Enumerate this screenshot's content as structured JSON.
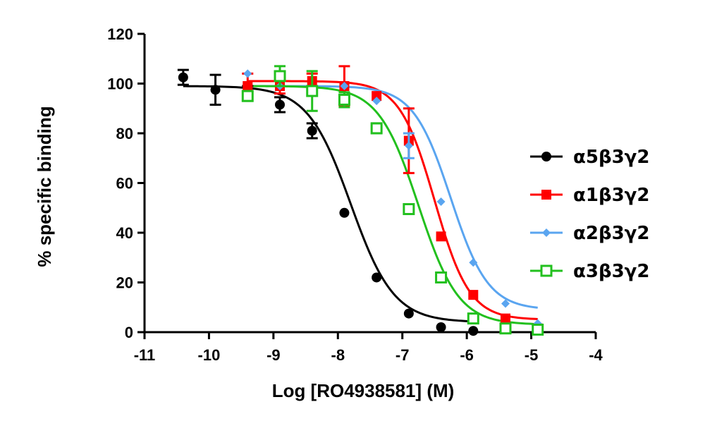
{
  "chart_data": {
    "type": "scatter",
    "title": "",
    "xlabel": "Log [RO4938581] (M)",
    "ylabel": "% specific binding",
    "xlim": [
      -11,
      -4
    ],
    "ylim": [
      0,
      120
    ],
    "xticks": [
      -11,
      -10,
      -9,
      -8,
      -7,
      -6,
      -5,
      -4
    ],
    "yticks": [
      0,
      20,
      40,
      60,
      80,
      100,
      120
    ],
    "xtick_labels": [
      "-11",
      "-10",
      "-9",
      "-8",
      "-7",
      "-6",
      "-5",
      "-4"
    ],
    "ytick_labels": [
      "0",
      "20",
      "40",
      "60",
      "80",
      "100",
      "120"
    ],
    "legend_position": "right",
    "series": [
      {
        "name": "α5β3γ2",
        "color": "#000000",
        "marker": "circle",
        "fit": {
          "top": 99,
          "bottom": 4,
          "logIC50": -7.8,
          "hill": 1.3,
          "xmin": -10.4,
          "xmax": -5.9
        },
        "points": [
          {
            "x": -10.4,
            "y": 102.5,
            "err": 3
          },
          {
            "x": -9.9,
            "y": 97.5,
            "err": 6
          },
          {
            "x": -9.4,
            "y": 97,
            "err": 2
          },
          {
            "x": -8.9,
            "y": 91.5,
            "err": 3
          },
          {
            "x": -8.4,
            "y": 81,
            "err": 3
          },
          {
            "x": -7.9,
            "y": 48,
            "err": 0
          },
          {
            "x": -7.4,
            "y": 22,
            "err": 0
          },
          {
            "x": -6.9,
            "y": 7.5,
            "err": 0
          },
          {
            "x": -6.4,
            "y": 2,
            "err": 0
          },
          {
            "x": -5.9,
            "y": 0.5,
            "err": 0
          }
        ]
      },
      {
        "name": "α1β3γ2",
        "color": "#ff0000",
        "marker": "square",
        "fit": {
          "top": 101,
          "bottom": 5,
          "logIC50": -6.5,
          "hill": 1.6,
          "xmin": -9.4,
          "xmax": -4.9
        },
        "points": [
          {
            "x": -9.4,
            "y": 99,
            "err": 5
          },
          {
            "x": -8.9,
            "y": 99,
            "err": 3
          },
          {
            "x": -8.4,
            "y": 101,
            "err": 3
          },
          {
            "x": -7.9,
            "y": 99,
            "err": 8
          },
          {
            "x": -7.4,
            "y": 95,
            "err": 0
          },
          {
            "x": -6.9,
            "y": 77,
            "err": 13
          },
          {
            "x": -6.4,
            "y": 38.5,
            "err": 0
          },
          {
            "x": -5.9,
            "y": 15,
            "err": 0
          },
          {
            "x": -5.4,
            "y": 5.5,
            "err": 0
          },
          {
            "x": -4.9,
            "y": 1.5,
            "err": 0
          }
        ]
      },
      {
        "name": "α2β3γ2",
        "color": "#5aa5f0",
        "marker": "diamond",
        "fit": {
          "top": 99,
          "bottom": 9,
          "logIC50": -6.25,
          "hill": 1.5,
          "xmin": -9.4,
          "xmax": -4.9
        },
        "points": [
          {
            "x": -9.4,
            "y": 104,
            "err": 0
          },
          {
            "x": -8.9,
            "y": 99,
            "err": 0
          },
          {
            "x": -8.4,
            "y": 96,
            "err": 0
          },
          {
            "x": -7.9,
            "y": 99,
            "err": 0
          },
          {
            "x": -7.4,
            "y": 93,
            "err": 0
          },
          {
            "x": -6.9,
            "y": 75,
            "err": 5
          },
          {
            "x": -6.4,
            "y": 52.5,
            "err": 0
          },
          {
            "x": -5.9,
            "y": 28,
            "err": 0
          },
          {
            "x": -5.4,
            "y": 11.5,
            "err": 0
          },
          {
            "x": -4.9,
            "y": 3.5,
            "err": 0
          }
        ]
      },
      {
        "name": "α3β3γ2",
        "color": "#22c01e",
        "marker": "open-square",
        "fit": {
          "top": 99,
          "bottom": 3,
          "logIC50": -6.75,
          "hill": 1.4,
          "xmin": -9.4,
          "xmax": -4.9
        },
        "points": [
          {
            "x": -9.4,
            "y": 95,
            "err": 2
          },
          {
            "x": -8.9,
            "y": 103,
            "err": 4
          },
          {
            "x": -8.4,
            "y": 97,
            "err": 8
          },
          {
            "x": -7.9,
            "y": 93.5,
            "err": 3
          },
          {
            "x": -7.4,
            "y": 82,
            "err": 2
          },
          {
            "x": -6.9,
            "y": 49.5,
            "err": 0
          },
          {
            "x": -6.4,
            "y": 22,
            "err": 0
          },
          {
            "x": -5.9,
            "y": 5.5,
            "err": 0
          },
          {
            "x": -5.4,
            "y": 1.5,
            "err": 0
          },
          {
            "x": -4.9,
            "y": 1,
            "err": 0
          }
        ]
      }
    ]
  }
}
